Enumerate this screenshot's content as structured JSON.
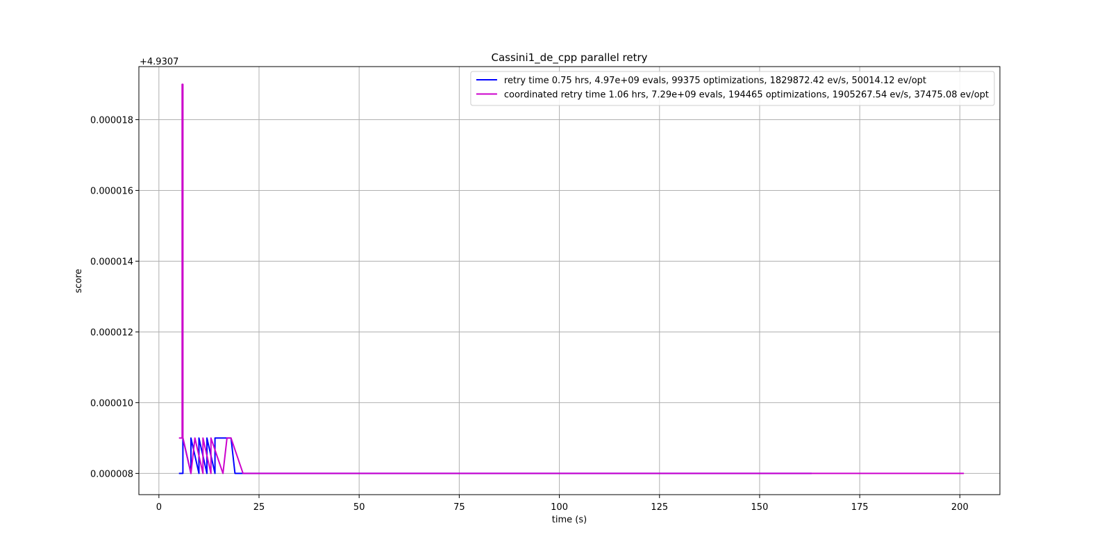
{
  "chart_data": {
    "type": "line",
    "title": "Cassini1_de_cpp parallel retry",
    "xlabel": "time (s)",
    "ylabel": "score",
    "offset_text": "+4.9307",
    "y_offset": 4.9307,
    "xlim": [
      -5,
      210
    ],
    "ylim": [
      7.4e-06,
      1.95e-05
    ],
    "x_ticks": [
      0,
      25,
      50,
      75,
      100,
      125,
      150,
      175,
      200
    ],
    "x_tick_labels": [
      "0",
      "25",
      "50",
      "75",
      "100",
      "125",
      "150",
      "175",
      "200"
    ],
    "y_ticks": [
      8e-06,
      1e-05,
      1.2e-05,
      1.4e-05,
      1.6e-05,
      1.8e-05
    ],
    "y_tick_labels": [
      "0.000008",
      "0.000010",
      "0.000012",
      "0.000014",
      "0.000016",
      "0.000018"
    ],
    "grid": true,
    "legend_position": "top-right",
    "series": [
      {
        "name": "retry time 0.75 hrs, 4.97e+09 evals, 99375 optimizations, 1829872.42 ev/s, 50014.12 ev/opt",
        "color": "#0000ff",
        "x": [
          5,
          6,
          6,
          8,
          8,
          10,
          10,
          12,
          12,
          14,
          14,
          18,
          19,
          163
        ],
        "y": [
          8e-06,
          8e-06,
          9e-06,
          8e-06,
          9e-06,
          8e-06,
          9e-06,
          8e-06,
          9e-06,
          8e-06,
          9e-06,
          9e-06,
          8e-06,
          8e-06
        ]
      },
      {
        "name": "coordinated retry time 1.06 hrs, 7.29e+09 evals, 194465 optimizations, 1905267.54 ev/s, 37475.08 ev/opt",
        "color": "#cc00cc",
        "x": [
          5,
          5.8,
          5.8,
          6,
          6,
          8,
          9,
          9,
          11,
          11,
          13,
          13,
          16,
          17,
          18,
          21,
          201
        ],
        "y": [
          9e-06,
          9e-06,
          1.9e-05,
          1.9e-05,
          9e-06,
          8e-06,
          9e-06,
          9e-06,
          8e-06,
          9e-06,
          8e-06,
          9e-06,
          8e-06,
          9e-06,
          9e-06,
          8e-06,
          8e-06
        ]
      }
    ]
  }
}
